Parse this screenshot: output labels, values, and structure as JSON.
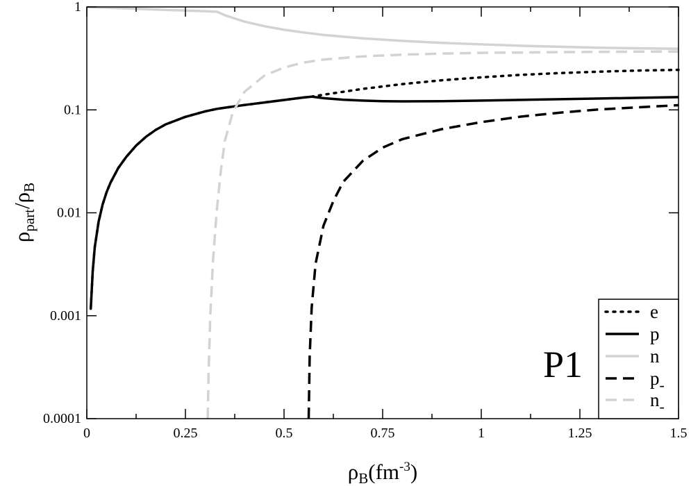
{
  "chart_data": {
    "type": "line",
    "title": "",
    "panel_label": "P1",
    "x_axis": {
      "label": {
        "main": "ρ",
        "sub": "B",
        "unit_pre": "(fm",
        "unit_sup": "-3",
        "unit_post": ")"
      },
      "range": [
        0,
        1.5
      ],
      "ticks": [
        0,
        0.25,
        0.5,
        0.75,
        1,
        1.25,
        1.5
      ],
      "tick_labels": [
        "0",
        "0.25",
        "0.5",
        "0.75",
        "1",
        "1.25",
        "1.5"
      ]
    },
    "y_axis": {
      "label": {
        "main1": "ρ",
        "sub1": "part",
        "slash": "/",
        "main2": "ρ",
        "sub2": "B"
      },
      "scale": "log",
      "range": [
        0.0001,
        1
      ],
      "ticks": [
        0.0001,
        0.001,
        0.01,
        0.1,
        1
      ],
      "tick_labels": [
        "0.0001",
        "0.001",
        "0.01",
        "0.1",
        "1"
      ]
    },
    "grid": false,
    "legend_position": "bottom-right",
    "series": [
      {
        "name": "e",
        "name_sub": "",
        "color": "#000000",
        "style": "dotted",
        "points": [
          [
            0.01,
            0.00117
          ],
          [
            0.015,
            0.0027
          ],
          [
            0.02,
            0.0046
          ],
          [
            0.03,
            0.0082
          ],
          [
            0.04,
            0.012
          ],
          [
            0.05,
            0.0158
          ],
          [
            0.06,
            0.0196
          ],
          [
            0.08,
            0.0273
          ],
          [
            0.1,
            0.0349
          ],
          [
            0.125,
            0.045
          ],
          [
            0.15,
            0.0548
          ],
          [
            0.175,
            0.064
          ],
          [
            0.2,
            0.0723
          ],
          [
            0.25,
            0.0855
          ],
          [
            0.3,
            0.0967
          ],
          [
            0.33,
            0.1022
          ],
          [
            0.35,
            0.105
          ],
          [
            0.4,
            0.1115
          ],
          [
            0.45,
            0.118
          ],
          [
            0.5,
            0.1247
          ],
          [
            0.55,
            0.132
          ],
          [
            0.57,
            0.1345
          ],
          [
            0.6,
            0.1405
          ],
          [
            0.7,
            0.16
          ],
          [
            0.8,
            0.178
          ],
          [
            0.9,
            0.194
          ],
          [
            1.0,
            0.207
          ],
          [
            1.1,
            0.219
          ],
          [
            1.2,
            0.228
          ],
          [
            1.3,
            0.235
          ],
          [
            1.4,
            0.241
          ],
          [
            1.5,
            0.245
          ]
        ]
      },
      {
        "name": "p",
        "name_sub": "",
        "color": "#000000",
        "style": "solid",
        "points": [
          [
            0.01,
            0.00117
          ],
          [
            0.015,
            0.0027
          ],
          [
            0.02,
            0.0046
          ],
          [
            0.03,
            0.0082
          ],
          [
            0.04,
            0.012
          ],
          [
            0.05,
            0.0158
          ],
          [
            0.06,
            0.0196
          ],
          [
            0.08,
            0.0273
          ],
          [
            0.1,
            0.0349
          ],
          [
            0.125,
            0.045
          ],
          [
            0.15,
            0.0548
          ],
          [
            0.175,
            0.064
          ],
          [
            0.2,
            0.0723
          ],
          [
            0.25,
            0.0855
          ],
          [
            0.3,
            0.0967
          ],
          [
            0.33,
            0.1022
          ],
          [
            0.35,
            0.105
          ],
          [
            0.4,
            0.1115
          ],
          [
            0.45,
            0.118
          ],
          [
            0.5,
            0.1247
          ],
          [
            0.55,
            0.132
          ],
          [
            0.57,
            0.1345
          ],
          [
            0.6,
            0.13
          ],
          [
            0.65,
            0.1255
          ],
          [
            0.7,
            0.123
          ],
          [
            0.75,
            0.1215
          ],
          [
            0.8,
            0.121
          ],
          [
            0.9,
            0.1215
          ],
          [
            1.0,
            0.123
          ],
          [
            1.1,
            0.125
          ],
          [
            1.2,
            0.127
          ],
          [
            1.3,
            0.129
          ],
          [
            1.4,
            0.131
          ],
          [
            1.5,
            0.133
          ]
        ]
      },
      {
        "name": "n",
        "name_sub": "",
        "color": "#d3d3d3",
        "style": "solid",
        "points": [
          [
            0,
            0.995
          ],
          [
            0.05,
            0.985
          ],
          [
            0.1,
            0.968
          ],
          [
            0.15,
            0.95
          ],
          [
            0.2,
            0.935
          ],
          [
            0.25,
            0.922
          ],
          [
            0.3,
            0.91
          ],
          [
            0.33,
            0.898
          ],
          [
            0.35,
            0.83
          ],
          [
            0.4,
            0.72
          ],
          [
            0.45,
            0.65
          ],
          [
            0.5,
            0.6
          ],
          [
            0.55,
            0.565
          ],
          [
            0.6,
            0.535
          ],
          [
            0.7,
            0.495
          ],
          [
            0.8,
            0.468
          ],
          [
            0.9,
            0.448
          ],
          [
            1.0,
            0.433
          ],
          [
            1.1,
            0.42
          ],
          [
            1.2,
            0.41
          ],
          [
            1.3,
            0.402
          ],
          [
            1.4,
            0.396
          ],
          [
            1.5,
            0.392
          ]
        ]
      },
      {
        "name": "p",
        "name_sub": "-",
        "color": "#000000",
        "style": "dashed",
        "points": [
          [
            0.5625,
            0.0001
          ],
          [
            0.565,
            0.0004
          ],
          [
            0.57,
            0.0012
          ],
          [
            0.58,
            0.0032
          ],
          [
            0.6,
            0.0075
          ],
          [
            0.625,
            0.013
          ],
          [
            0.65,
            0.02
          ],
          [
            0.7,
            0.032
          ],
          [
            0.75,
            0.043
          ],
          [
            0.8,
            0.052
          ],
          [
            0.9,
            0.065
          ],
          [
            1.0,
            0.076
          ],
          [
            1.1,
            0.086
          ],
          [
            1.2,
            0.094
          ],
          [
            1.3,
            0.101
          ],
          [
            1.4,
            0.106
          ],
          [
            1.5,
            0.111
          ]
        ]
      },
      {
        "name": "n",
        "name_sub": "-",
        "color": "#d3d3d3",
        "style": "dashed",
        "points": [
          [
            0.3065,
            0.0001
          ],
          [
            0.309,
            0.0003
          ],
          [
            0.313,
            0.001
          ],
          [
            0.32,
            0.0035
          ],
          [
            0.33,
            0.011
          ],
          [
            0.34,
            0.026
          ],
          [
            0.35,
            0.05
          ],
          [
            0.37,
            0.095
          ],
          [
            0.4,
            0.15
          ],
          [
            0.45,
            0.215
          ],
          [
            0.5,
            0.258
          ],
          [
            0.55,
            0.288
          ],
          [
            0.6,
            0.308
          ],
          [
            0.7,
            0.331
          ],
          [
            0.8,
            0.344
          ],
          [
            0.9,
            0.352
          ],
          [
            1.0,
            0.358
          ],
          [
            1.2,
            0.364
          ],
          [
            1.35,
            0.367
          ],
          [
            1.5,
            0.369
          ]
        ]
      }
    ]
  }
}
